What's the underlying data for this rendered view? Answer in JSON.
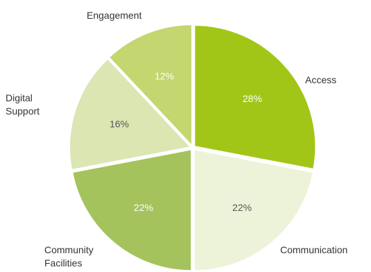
{
  "chart_data": {
    "type": "pie",
    "title": "",
    "categories": [
      "Access",
      "Communication",
      "Community Facilities",
      "Digital Support",
      "Engagement"
    ],
    "values": [
      28,
      22,
      22,
      16,
      12
    ],
    "value_labels": [
      "28%",
      "22%",
      "22%",
      "16%",
      "12%"
    ],
    "colors": [
      "#a2c617",
      "#edf3d8",
      "#a4c35c",
      "#dbe6b3",
      "#c3d66f"
    ],
    "value_label_colors": [
      "#ffffff",
      "#555555",
      "#ffffff",
      "#555555",
      "#ffffff"
    ],
    "start": "12 o'clock",
    "direction": "clockwise",
    "legend": "none"
  }
}
